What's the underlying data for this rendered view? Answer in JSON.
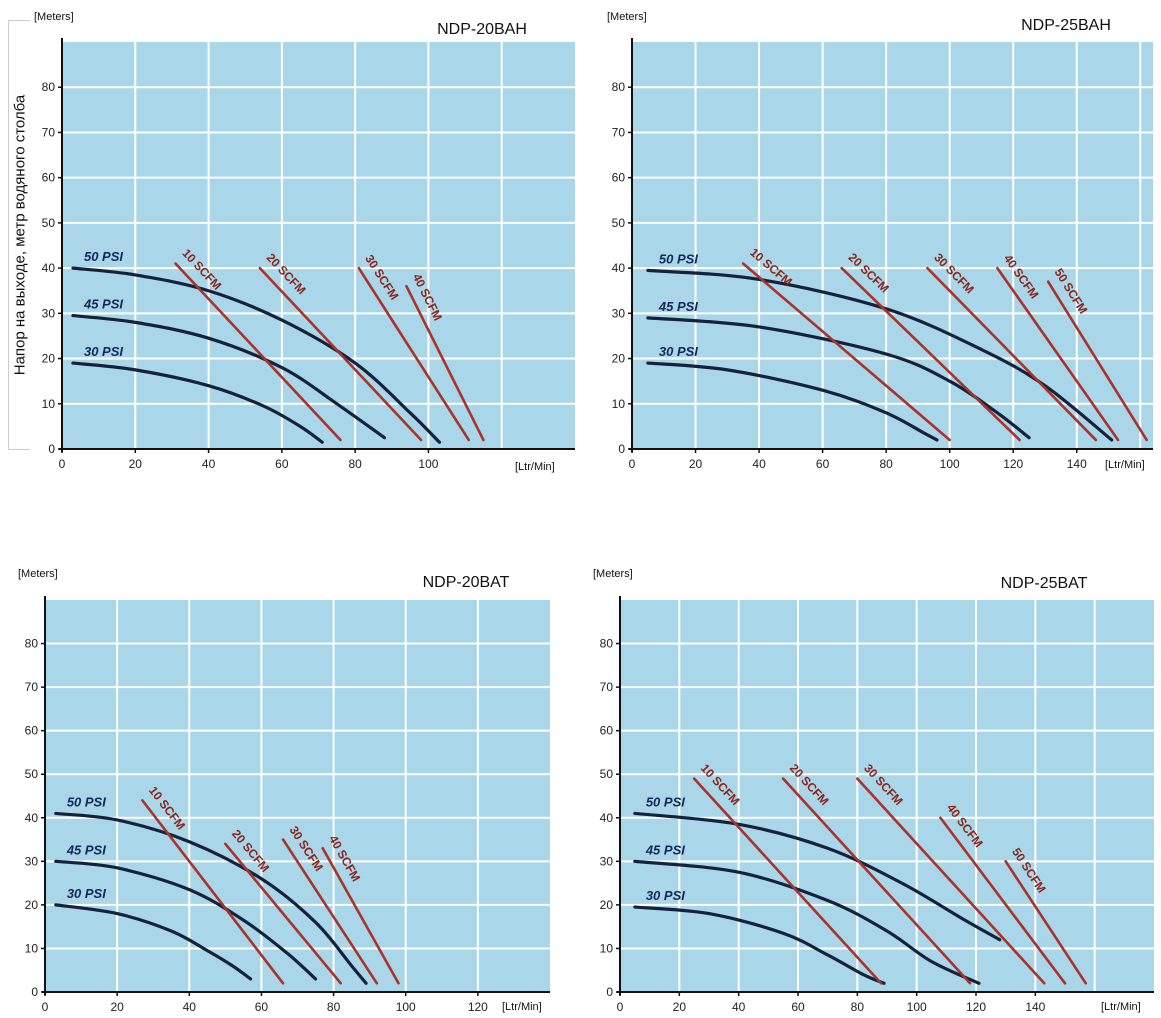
{
  "y_axis_title": "Напор на выходе, метр водяного столба",
  "colors": {
    "plot_bg": "#a9d6e8",
    "grid": "#ffffff",
    "pressure_curve": "#16213b",
    "scfm_line": "#a9322a",
    "axis": "#111111"
  },
  "chart_data": [
    {
      "type": "line",
      "title": "NDP-20BAH",
      "ylabel": "[Meters]",
      "xlabel": "[Ltr/Min]",
      "xlim": [
        0,
        140
      ],
      "ylim": [
        0,
        90
      ],
      "x_ticks": [
        "0",
        "20",
        "40",
        "60",
        "80",
        "100"
      ],
      "y_ticks": [
        "0",
        "10",
        "20",
        "30",
        "40",
        "50",
        "60",
        "70",
        "80"
      ],
      "grid": true,
      "series": [
        {
          "name": "50 PSI",
          "kind": "pressure",
          "points": [
            [
              3,
              40
            ],
            [
              20,
              38.5
            ],
            [
              40,
              35
            ],
            [
              60,
              28.5
            ],
            [
              80,
              19
            ],
            [
              95,
              8
            ],
            [
              103,
              1.5
            ]
          ]
        },
        {
          "name": "45 PSI",
          "kind": "pressure",
          "points": [
            [
              3,
              29.5
            ],
            [
              20,
              28
            ],
            [
              40,
              24.5
            ],
            [
              60,
              18
            ],
            [
              75,
              10
            ],
            [
              88,
              2.5
            ]
          ]
        },
        {
          "name": "30 PSI",
          "kind": "pressure",
          "points": [
            [
              3,
              19
            ],
            [
              20,
              17.5
            ],
            [
              40,
              14
            ],
            [
              55,
              9.5
            ],
            [
              65,
              5
            ],
            [
              71,
              1.5
            ]
          ]
        },
        {
          "name": "10 SCFM",
          "kind": "scfm",
          "points": [
            [
              31,
              41
            ],
            [
              76,
              2
            ]
          ]
        },
        {
          "name": "20 SCFM",
          "kind": "scfm",
          "points": [
            [
              54,
              40
            ],
            [
              98,
              2
            ]
          ]
        },
        {
          "name": "30 SCFM",
          "kind": "scfm",
          "points": [
            [
              81,
              40
            ],
            [
              111,
              2
            ]
          ]
        },
        {
          "name": "40 SCFM",
          "kind": "scfm",
          "points": [
            [
              94,
              36
            ],
            [
              115,
              2
            ]
          ]
        }
      ]
    },
    {
      "type": "line",
      "title": "NDP-25BAH",
      "ylabel": "[Meters]",
      "xlabel": "[Ltr/Min]",
      "xlim": [
        0,
        164
      ],
      "ylim": [
        0,
        90
      ],
      "x_ticks": [
        "0",
        "20",
        "40",
        "60",
        "80",
        "100",
        "120",
        "140"
      ],
      "y_ticks": [
        "0",
        "10",
        "20",
        "30",
        "40",
        "50",
        "60",
        "70",
        "80"
      ],
      "grid": true,
      "series": [
        {
          "name": "50 PSI",
          "kind": "pressure",
          "points": [
            [
              5,
              39.5
            ],
            [
              40,
              37.5
            ],
            [
              80,
              31
            ],
            [
              110,
              22
            ],
            [
              130,
              14
            ],
            [
              151,
              2
            ]
          ]
        },
        {
          "name": "45 PSI",
          "kind": "pressure",
          "points": [
            [
              5,
              29
            ],
            [
              40,
              27
            ],
            [
              80,
              21
            ],
            [
              100,
              15
            ],
            [
              115,
              8
            ],
            [
              125,
              2.5
            ]
          ]
        },
        {
          "name": "30 PSI",
          "kind": "pressure",
          "points": [
            [
              5,
              19
            ],
            [
              30,
              17.5
            ],
            [
              60,
              13
            ],
            [
              80,
              8
            ],
            [
              92,
              3.5
            ],
            [
              96,
              2
            ]
          ]
        },
        {
          "name": "10 SCFM",
          "kind": "scfm",
          "points": [
            [
              35,
              41
            ],
            [
              100,
              2
            ]
          ]
        },
        {
          "name": "20 SCFM",
          "kind": "scfm",
          "points": [
            [
              66,
              40
            ],
            [
              122,
              2
            ]
          ]
        },
        {
          "name": "30 SCFM",
          "kind": "scfm",
          "points": [
            [
              93,
              40
            ],
            [
              146,
              2
            ]
          ]
        },
        {
          "name": "40 SCFM",
          "kind": "scfm",
          "points": [
            [
              115,
              40
            ],
            [
              153,
              2
            ]
          ]
        },
        {
          "name": "50 SCFM",
          "kind": "scfm",
          "points": [
            [
              131,
              37
            ],
            [
              162,
              2
            ]
          ]
        }
      ]
    },
    {
      "type": "line",
      "title": "NDP-20BAT",
      "ylabel": "[Meters]",
      "xlabel": "[Ltr/Min]",
      "xlim": [
        0,
        140
      ],
      "ylim": [
        0,
        90
      ],
      "x_ticks": [
        "0",
        "20",
        "40",
        "60",
        "80",
        "100",
        "120"
      ],
      "y_ticks": [
        "0",
        "10",
        "20",
        "30",
        "40",
        "50",
        "60",
        "70",
        "80"
      ],
      "grid": true,
      "series": [
        {
          "name": "50 PSI",
          "kind": "pressure",
          "points": [
            [
              3,
              41
            ],
            [
              20,
              39.5
            ],
            [
              40,
              34.5
            ],
            [
              60,
              26
            ],
            [
              75,
              16
            ],
            [
              85,
              6
            ],
            [
              89,
              2
            ]
          ]
        },
        {
          "name": "45 PSI",
          "kind": "pressure",
          "points": [
            [
              3,
              30
            ],
            [
              20,
              28.5
            ],
            [
              40,
              23.5
            ],
            [
              55,
              16.5
            ],
            [
              67,
              9
            ],
            [
              75,
              3
            ]
          ]
        },
        {
          "name": "30 PSI",
          "kind": "pressure",
          "points": [
            [
              3,
              20
            ],
            [
              20,
              18
            ],
            [
              35,
              14
            ],
            [
              45,
              9.5
            ],
            [
              52,
              6
            ],
            [
              57,
              3
            ]
          ]
        },
        {
          "name": "10 SCFM",
          "kind": "scfm",
          "points": [
            [
              27,
              44
            ],
            [
              66,
              2
            ]
          ]
        },
        {
          "name": "20 SCFM",
          "kind": "scfm",
          "points": [
            [
              50,
              34
            ],
            [
              82,
              2
            ]
          ]
        },
        {
          "name": "30 SCFM",
          "kind": "scfm",
          "points": [
            [
              66,
              35
            ],
            [
              92,
              2
            ]
          ]
        },
        {
          "name": "40 SCFM",
          "kind": "scfm",
          "points": [
            [
              77,
              33
            ],
            [
              98,
              2
            ]
          ]
        }
      ]
    },
    {
      "type": "line",
      "title": "NDP-25BAT",
      "ylabel": "[Meters]",
      "xlabel": "[Ltr/Min]",
      "xlim": [
        0,
        180
      ],
      "ylim": [
        0,
        90
      ],
      "x_ticks": [
        "0",
        "20",
        "40",
        "60",
        "80",
        "100",
        "120",
        "140"
      ],
      "y_ticks": [
        "0",
        "10",
        "20",
        "30",
        "40",
        "50",
        "60",
        "70",
        "80"
      ],
      "grid": true,
      "series": [
        {
          "name": "50 PSI",
          "kind": "pressure",
          "points": [
            [
              5,
              41
            ],
            [
              40,
              38.5
            ],
            [
              70,
              33
            ],
            [
              95,
              25
            ],
            [
              115,
              17
            ],
            [
              128,
              12
            ]
          ]
        },
        {
          "name": "45 PSI",
          "kind": "pressure",
          "points": [
            [
              5,
              30
            ],
            [
              40,
              27.5
            ],
            [
              70,
              21
            ],
            [
              90,
              14
            ],
            [
              105,
              7
            ],
            [
              121,
              2
            ]
          ]
        },
        {
          "name": "30 PSI",
          "kind": "pressure",
          "points": [
            [
              5,
              19.5
            ],
            [
              30,
              18
            ],
            [
              55,
              13.5
            ],
            [
              70,
              8.5
            ],
            [
              82,
              4
            ],
            [
              89,
              2
            ]
          ]
        },
        {
          "name": "10 SCFM",
          "kind": "scfm",
          "points": [
            [
              25,
              49
            ],
            [
              88,
              2
            ]
          ]
        },
        {
          "name": "20 SCFM",
          "kind": "scfm",
          "points": [
            [
              55,
              49
            ],
            [
              118,
              2
            ]
          ]
        },
        {
          "name": "30 SCFM",
          "kind": "scfm",
          "points": [
            [
              80,
              49
            ],
            [
              143,
              2
            ]
          ]
        },
        {
          "name": "40 SCFM",
          "kind": "scfm",
          "points": [
            [
              108,
              40
            ],
            [
              150,
              2
            ]
          ]
        },
        {
          "name": "50 SCFM",
          "kind": "scfm",
          "points": [
            [
              130,
              30
            ],
            [
              157,
              2
            ]
          ]
        }
      ]
    }
  ]
}
